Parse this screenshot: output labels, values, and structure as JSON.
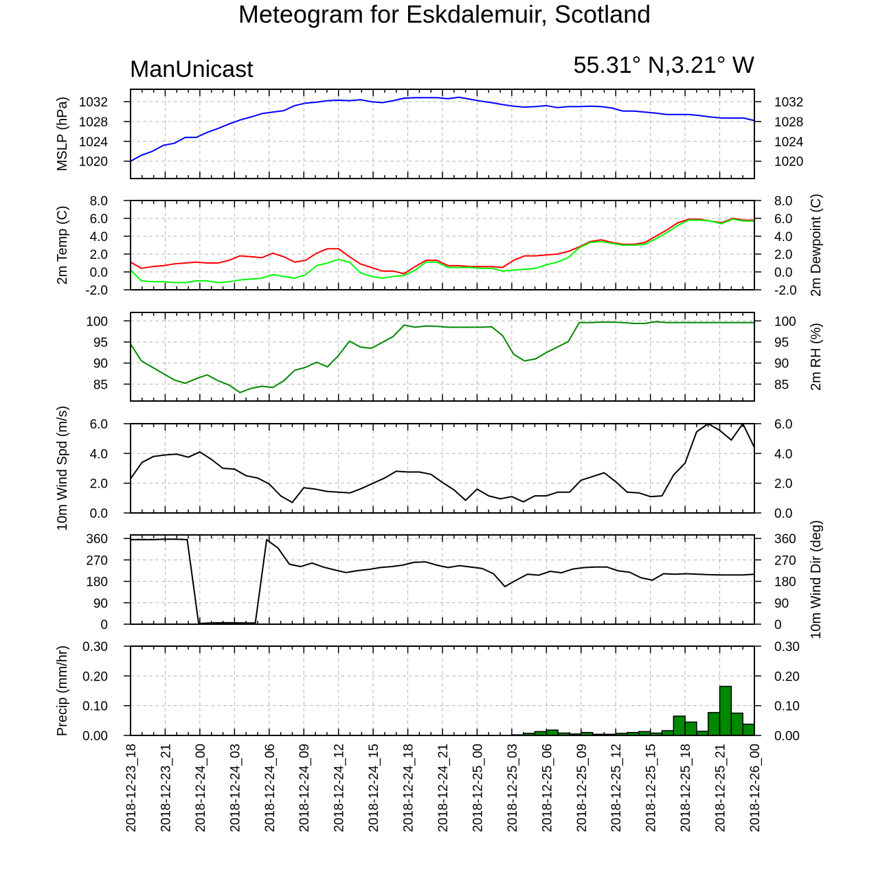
{
  "title": "Meteogram for Eskdalemuir, Scotland",
  "left_label": "ManUnicast",
  "right_label": "55.31° N,3.21° W",
  "time_labels": [
    "2018-12-23_18",
    "2018-12-23_21",
    "2018-12-24_00",
    "2018-12-24_03",
    "2018-12-24_06",
    "2018-12-24_09",
    "2018-12-24_12",
    "2018-12-24_15",
    "2018-12-24_18",
    "2018-12-24_21",
    "2018-12-25_00",
    "2018-12-25_03",
    "2018-12-25_06",
    "2018-12-25_09",
    "2018-12-25_12",
    "2018-12-25_15",
    "2018-12-25_18",
    "2018-12-25_21",
    "2018-12-26_00"
  ],
  "chart_data": [
    {
      "type": "line",
      "ylabel": "MSLP (hPa)",
      "ylim": [
        1016.5,
        1034.5
      ],
      "yticks": [
        1020,
        1024,
        1028,
        1032
      ],
      "tick_labels": [
        "1020",
        "1024",
        "1028",
        "1032"
      ],
      "tick_labels_right": [
        "1020",
        "1024",
        "1028",
        "1032"
      ],
      "series": [
        {
          "color": "#0000ff",
          "values": [
            1020.0,
            1021.2,
            1022.0,
            1023.2,
            1023.6,
            1024.8,
            1024.8,
            1025.8,
            1026.6,
            1027.5,
            1028.3,
            1028.9,
            1029.6,
            1029.9,
            1030.2,
            1031.2,
            1031.7,
            1031.9,
            1032.2,
            1032.3,
            1032.2,
            1032.4,
            1032.0,
            1031.8,
            1032.2,
            1032.7,
            1032.8,
            1032.8,
            1032.8,
            1032.6,
            1032.9,
            1032.5,
            1032.1,
            1031.8,
            1031.4,
            1031.1,
            1030.9,
            1031.0,
            1031.2,
            1030.8,
            1031.0,
            1031.0,
            1031.1,
            1031.0,
            1030.7,
            1030.1,
            1030.1,
            1029.9,
            1029.7,
            1029.4,
            1029.4,
            1029.4,
            1029.2,
            1028.9,
            1028.7,
            1028.7,
            1028.7,
            1028.2
          ]
        }
      ]
    },
    {
      "type": "line",
      "ylabel": "2m Temp (C)",
      "ylabel_right": "2m Dewpoint (C)",
      "ylim": [
        -2.0,
        8.0
      ],
      "yticks": [
        -2,
        0,
        2,
        4,
        6,
        8
      ],
      "tick_labels": [
        "-2.0",
        "0.0",
        "2.0",
        "4.0",
        "6.0",
        "8.0"
      ],
      "tick_labels_right": [
        "-2.0",
        "0.0",
        "2.0",
        "4.0",
        "6.0",
        "8.0"
      ],
      "series": [
        {
          "color": "#ff0000",
          "values": [
            1.1,
            0.4,
            0.6,
            0.7,
            0.9,
            1.0,
            1.1,
            1.0,
            1.0,
            1.3,
            1.8,
            1.7,
            1.6,
            2.1,
            1.7,
            1.1,
            1.3,
            2.1,
            2.6,
            2.6,
            1.7,
            0.9,
            0.5,
            0.1,
            0.1,
            -0.2,
            0.6,
            1.3,
            1.3,
            0.7,
            0.7,
            0.6,
            0.6,
            0.6,
            0.5,
            1.3,
            1.8,
            1.8,
            1.9,
            2.0,
            2.3,
            2.8,
            3.4,
            3.6,
            3.3,
            3.1,
            3.1,
            3.3,
            4.0,
            4.7,
            5.5,
            5.9,
            5.9,
            5.7,
            5.5,
            6.0,
            5.8,
            5.8
          ]
        },
        {
          "color": "#00ff00",
          "values": [
            0.2,
            -1.0,
            -1.1,
            -1.1,
            -1.2,
            -1.2,
            -1.0,
            -1.0,
            -1.2,
            -1.1,
            -0.9,
            -0.8,
            -0.7,
            -0.3,
            -0.5,
            -0.7,
            -0.3,
            0.7,
            1.0,
            1.4,
            1.1,
            -0.1,
            -0.5,
            -0.7,
            -0.5,
            -0.4,
            0.2,
            1.1,
            1.1,
            0.5,
            0.5,
            0.5,
            0.4,
            0.4,
            0.1,
            0.2,
            0.3,
            0.4,
            0.8,
            1.1,
            1.6,
            2.7,
            3.3,
            3.4,
            3.2,
            3.0,
            3.0,
            3.1,
            3.7,
            4.4,
            5.2,
            5.8,
            5.8,
            5.7,
            5.4,
            5.9,
            5.7,
            5.7
          ]
        }
      ]
    },
    {
      "type": "line",
      "ylabel_right": "2m RH (%)",
      "ylim": [
        81.0,
        102.0
      ],
      "yticks": [
        85,
        90,
        95,
        100
      ],
      "tick_labels": [
        "85",
        "90",
        "95",
        "100"
      ],
      "tick_labels_right": [
        "85",
        "90",
        "95",
        "100"
      ],
      "series": [
        {
          "color": "#008800",
          "values": [
            94.5,
            90.5,
            89.0,
            87.5,
            86.0,
            85.2,
            86.3,
            87.2,
            85.8,
            84.8,
            83.0,
            84.0,
            84.5,
            84.2,
            85.8,
            88.3,
            89.0,
            90.2,
            89.1,
            91.8,
            95.2,
            93.8,
            93.5,
            94.9,
            96.3,
            99.0,
            98.5,
            98.8,
            98.7,
            98.5,
            98.5,
            98.5,
            98.5,
            98.6,
            96.5,
            92.1,
            90.5,
            91.0,
            92.5,
            93.8,
            95.1,
            99.6,
            99.6,
            99.7,
            99.7,
            99.6,
            99.4,
            99.4,
            99.8,
            99.6,
            99.6,
            99.6,
            99.6,
            99.6,
            99.6,
            99.6,
            99.6,
            99.6
          ]
        }
      ]
    },
    {
      "type": "line",
      "ylabel": "10m Wind Spd (m/s)",
      "ylim": [
        0,
        6
      ],
      "yticks": [
        0,
        2,
        4,
        6
      ],
      "tick_labels": [
        "0.0",
        "2.0",
        "4.0",
        "6.0"
      ],
      "tick_labels_right": [
        "0.0",
        "2.0",
        "4.0",
        "6.0"
      ],
      "series": [
        {
          "color": "#000000",
          "values": [
            2.3,
            3.4,
            3.8,
            3.9,
            3.95,
            3.75,
            4.1,
            3.6,
            3.0,
            2.95,
            2.5,
            2.35,
            1.95,
            1.15,
            0.7,
            1.7,
            1.6,
            1.45,
            1.4,
            1.35,
            1.65,
            2.0,
            2.35,
            2.8,
            2.75,
            2.75,
            2.6,
            2.05,
            1.55,
            0.85,
            1.6,
            1.15,
            0.95,
            1.1,
            0.75,
            1.15,
            1.15,
            1.4,
            1.4,
            2.2,
            2.45,
            2.7,
            2.1,
            1.4,
            1.35,
            1.1,
            1.15,
            2.55,
            3.35,
            5.45,
            6.0,
            5.55,
            4.9,
            6.0,
            4.4
          ]
        }
      ]
    },
    {
      "type": "line",
      "ylabel_right": "10m Wind Dir (deg)",
      "ylim": [
        0,
        375
      ],
      "yticks": [
        0,
        90,
        180,
        270,
        360
      ],
      "tick_labels": [
        "0",
        "90",
        "180",
        "270",
        "360"
      ],
      "tick_labels_right": [
        "0",
        "90",
        "180",
        "270",
        "360"
      ],
      "series": [
        {
          "color": "#000000",
          "values": [
            355,
            355,
            355,
            357,
            357,
            355,
            3,
            5,
            6,
            6,
            5,
            5,
            355,
            320,
            252,
            242,
            257,
            240,
            228,
            217,
            225,
            230,
            238,
            242,
            248,
            260,
            262,
            248,
            238,
            246,
            240,
            234,
            212,
            158,
            185,
            210,
            206,
            222,
            216,
            232,
            238,
            240,
            240,
            224,
            218,
            195,
            185,
            212,
            210,
            212,
            210,
            208,
            207,
            207,
            207,
            210
          ]
        }
      ]
    },
    {
      "type": "bar",
      "ylabel": "Precip (mm/hr)",
      "ylim": [
        0,
        0.3
      ],
      "yticks": [
        0,
        0.1,
        0.2,
        0.3
      ],
      "tick_labels": [
        "0.00",
        "0.10",
        "0.20",
        "0.30"
      ],
      "tick_labels_right": [
        "0.00",
        "0.10",
        "0.20",
        "0.30"
      ],
      "series": [
        {
          "color": "#008800",
          "values": [
            0.0,
            0.0,
            0.0,
            0.0,
            0.0,
            0.0,
            0.0,
            0.0,
            0.0,
            0.0,
            0.0,
            0.0,
            0.0,
            0.0,
            0.0,
            0.0,
            0.0,
            0.0,
            0.0,
            0.0,
            0.0,
            0.0,
            0.0,
            0.0,
            0.0,
            0.0,
            0.0,
            0.0,
            0.0,
            0.0,
            0.0,
            0.0,
            0.0,
            0.002,
            0.007,
            0.013,
            0.018,
            0.008,
            0.005,
            0.01,
            0.004,
            0.004,
            0.007,
            0.01,
            0.013,
            0.008,
            0.016,
            0.065,
            0.045,
            0.014,
            0.077,
            0.165,
            0.075,
            0.038
          ]
        }
      ]
    }
  ]
}
